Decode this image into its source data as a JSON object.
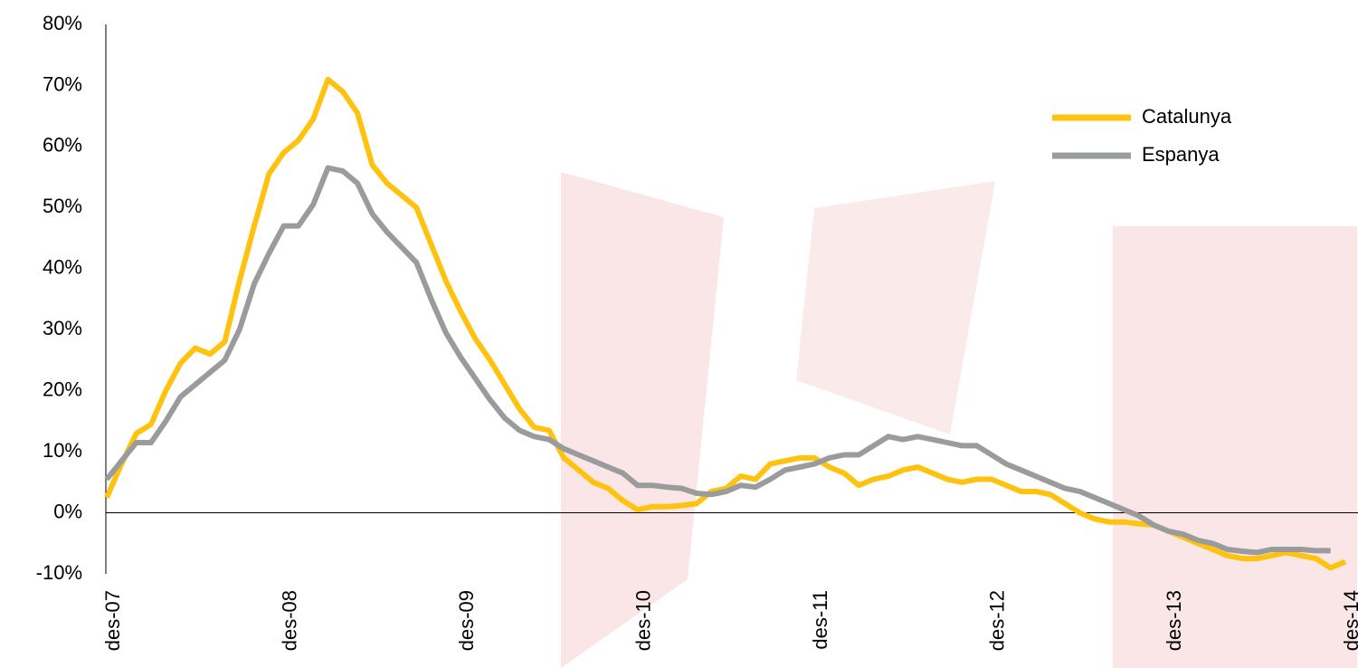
{
  "chart_data": {
    "type": "line",
    "categories": [
      "des-07",
      null,
      null,
      null,
      null,
      null,
      null,
      null,
      null,
      null,
      null,
      null,
      "des-08",
      null,
      null,
      null,
      null,
      null,
      null,
      null,
      null,
      null,
      null,
      null,
      "des-09",
      null,
      null,
      null,
      null,
      null,
      null,
      null,
      null,
      null,
      null,
      null,
      "des-10",
      null,
      null,
      null,
      null,
      null,
      null,
      null,
      null,
      null,
      null,
      null,
      "des-11",
      null,
      null,
      null,
      null,
      null,
      null,
      null,
      null,
      null,
      null,
      null,
      "des-12",
      null,
      null,
      null,
      null,
      null,
      null,
      null,
      null,
      null,
      null,
      null,
      "des-13",
      null,
      null,
      null,
      null,
      null,
      null,
      null,
      null,
      null,
      null,
      null,
      "des-14"
    ],
    "series": [
      {
        "name": "Catalunya",
        "color": "#FFC20E",
        "values": [
          2.5,
          8,
          13,
          14.5,
          20,
          24.5,
          27,
          26,
          28,
          38,
          47,
          55.5,
          59,
          61,
          64.5,
          71,
          69,
          65.5,
          57,
          54,
          52,
          50,
          44,
          38,
          33,
          28.5,
          25,
          21,
          17,
          14,
          13.5,
          9,
          7,
          5,
          4,
          2,
          0.5,
          1,
          1,
          1.2,
          1.5,
          3.5,
          4,
          6,
          5.5,
          8,
          8.5,
          9,
          9,
          7.5,
          6.5,
          4.5,
          5.5,
          6,
          7,
          7.5,
          6.5,
          5.5,
          5,
          5.5,
          5.5,
          4.5,
          3.5,
          3.5,
          3,
          1.5,
          0,
          -1,
          -1.5,
          -1.5,
          -1.8,
          -2,
          -3,
          -4,
          -5,
          -6,
          -7,
          -7.5,
          -7.5,
          -7,
          -6.5,
          -7,
          -7.5,
          -9,
          -8
        ]
      },
      {
        "name": "Espanya",
        "color": "#999B9C",
        "values": [
          5.5,
          8.5,
          11.5,
          11.5,
          15,
          19,
          21,
          23,
          25,
          30,
          37.5,
          42.5,
          47,
          47,
          50.5,
          56.5,
          56,
          54,
          49,
          46,
          43.5,
          41,
          35,
          29.5,
          25.5,
          22,
          18.5,
          15.5,
          13.5,
          12.5,
          12,
          10.5,
          9.5,
          8.5,
          7.5,
          6.5,
          4.5,
          4.5,
          4.2,
          4,
          3.2,
          3,
          3.5,
          4.5,
          4.2,
          5.5,
          7,
          7.5,
          8,
          9,
          9.5,
          9.5,
          11,
          12.5,
          12,
          12.5,
          12,
          11.5,
          11,
          11,
          9.5,
          8,
          7,
          6,
          5,
          4,
          3.5,
          2.5,
          1.5,
          0.5,
          -0.5,
          -2,
          -3,
          -3.5,
          -4.5,
          -5,
          -6,
          -6.3,
          -6.5,
          -6,
          -6,
          -6,
          -6.2,
          -6.2,
          null
        ]
      }
    ],
    "ylim": [
      -10,
      80
    ],
    "yticks": [
      {
        "value": -10,
        "label": "-10%"
      },
      {
        "value": 0,
        "label": "0%"
      },
      {
        "value": 10,
        "label": "10%"
      },
      {
        "value": 20,
        "label": "20%"
      },
      {
        "value": 30,
        "label": "30%"
      },
      {
        "value": 40,
        "label": "40%"
      },
      {
        "value": 50,
        "label": "50%"
      },
      {
        "value": 60,
        "label": "60%"
      },
      {
        "value": 70,
        "label": "70%"
      },
      {
        "value": 80,
        "label": "80%"
      }
    ],
    "legend": "upper right"
  }
}
